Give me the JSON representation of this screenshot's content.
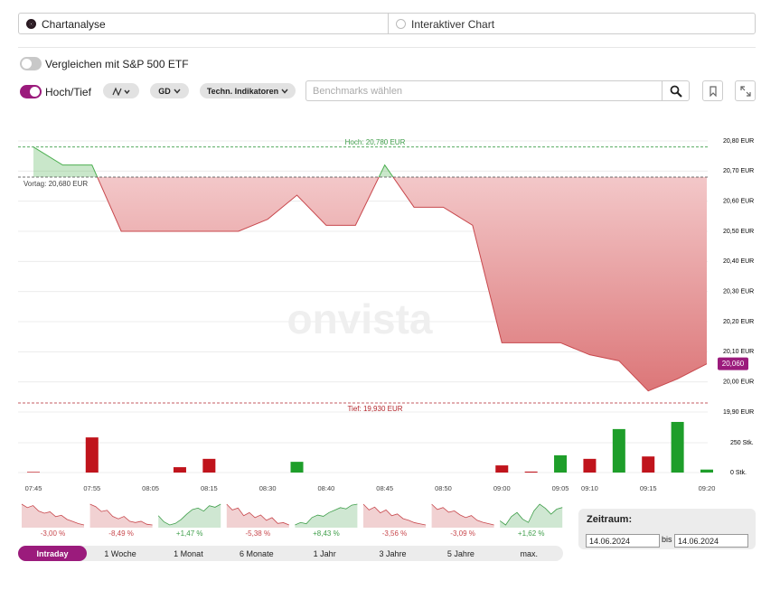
{
  "tabs": [
    {
      "label": "Chartanalyse",
      "selected": true
    },
    {
      "label": "Interaktiver Chart",
      "selected": false
    }
  ],
  "toggles": [
    {
      "label": "Vergleichen mit S&P 500 ETF",
      "on": false
    },
    {
      "label": "Hoch/Tief",
      "on": true
    }
  ],
  "toolbar": {
    "gd": "GD",
    "indicators": "Techn. Indikatoren",
    "benchmark_placeholder": "Benchmarks wählen"
  },
  "watermark": "onvista",
  "chart_data": [
    {
      "type": "area",
      "categories": [
        "07:45",
        null,
        "07:55",
        null,
        "08:05",
        null,
        "08:15",
        null,
        "08:30",
        null,
        "08:40",
        null,
        "08:45",
        null,
        "08:50",
        null,
        "09:00",
        null,
        "09:05",
        "09:10",
        null,
        "09:15",
        null,
        "09:20"
      ],
      "values": [
        20.78,
        20.72,
        20.72,
        20.5,
        20.5,
        20.5,
        20.5,
        20.5,
        20.54,
        20.62,
        20.52,
        20.52,
        20.72,
        20.58,
        20.58,
        20.52,
        20.13,
        20.13,
        20.13,
        20.09,
        20.07,
        19.97,
        20.01,
        20.06
      ],
      "ylim": [
        19.9,
        20.8
      ],
      "yticks": [
        {
          "value": 19.9,
          "label": "19,90 EUR"
        },
        {
          "value": 20.0,
          "label": "20,00 EUR"
        },
        {
          "value": 20.1,
          "label": "20,10 EUR"
        },
        {
          "value": 20.2,
          "label": "20,20 EUR"
        },
        {
          "value": 20.3,
          "label": "20,30 EUR"
        },
        {
          "value": 20.4,
          "label": "20,40 EUR"
        },
        {
          "value": 20.5,
          "label": "20,50 EUR"
        },
        {
          "value": 20.6,
          "label": "20,60 EUR"
        },
        {
          "value": 20.7,
          "label": "20,70 EUR"
        },
        {
          "value": 20.8,
          "label": "20,80 EUR"
        }
      ],
      "grid": true,
      "up_color": "#4caf50",
      "down_color": "#c8484d",
      "reference_lines": [
        {
          "kind": "high",
          "value": 20.78,
          "label": "Hoch: 20,780 EUR",
          "color": "#3f9e4a"
        },
        {
          "kind": "previous_close",
          "value": 20.68,
          "label": "Vortag: 20,680 EUR",
          "color": "#444444"
        },
        {
          "kind": "low",
          "value": 19.93,
          "label": "Tief: 19,930 EUR",
          "color": "#b3262c"
        }
      ],
      "last_value_label": {
        "value": 20.06,
        "label": "20,060",
        "color": "#9b1b7c"
      }
    },
    {
      "type": "bar",
      "values": [
        5,
        null,
        295,
        null,
        null,
        45,
        115,
        null,
        null,
        90,
        null,
        null,
        null,
        null,
        null,
        null,
        60,
        8,
        145,
        115,
        365,
        135,
        425,
        25
      ],
      "colors": [
        "#c0141c",
        null,
        "#c0141c",
        null,
        null,
        "#c0141c",
        "#c0141c",
        null,
        null,
        "#1e9e2a",
        null,
        null,
        null,
        null,
        null,
        null,
        "#c0141c",
        "#c0141c",
        "#1e9e2a",
        "#c0141c",
        "#1e9e2a",
        "#c0141c",
        "#1e9e2a",
        "#1e9e2a"
      ],
      "ylim": [
        0,
        440
      ],
      "yticks": [
        {
          "value": 0,
          "label": "0 Stk."
        },
        {
          "value": 250,
          "label": "250 Stk."
        }
      ]
    },
    {
      "type": "sparkline",
      "label": "-3,00 %",
      "color": "#c8484d",
      "values": [
        100,
        99.5,
        99.8,
        99,
        98.7,
        98.9,
        98.2,
        98.4,
        97.8,
        97.5,
        97.2,
        97
      ]
    },
    {
      "type": "sparkline",
      "label": "-8,49 %",
      "color": "#c8484d",
      "values": [
        100,
        99,
        97,
        97.5,
        95,
        94,
        95,
        93,
        92.5,
        93,
        91.8,
        91.5
      ]
    },
    {
      "type": "sparkline",
      "label": "+1,47 %",
      "color": "#3f9e4a",
      "values": [
        100,
        99.2,
        98.8,
        99,
        99.5,
        100.2,
        100.8,
        101,
        100.6,
        101.3,
        101.1,
        101.5
      ]
    },
    {
      "type": "sparkline",
      "label": "-5,38 %",
      "color": "#c8484d",
      "values": [
        100,
        98.5,
        99,
        97,
        97.8,
        96.5,
        97.2,
        95.8,
        96.5,
        95,
        95.2,
        94.6
      ]
    },
    {
      "type": "sparkline",
      "label": "+8,43 %",
      "color": "#3f9e4a",
      "values": [
        100,
        101,
        100.5,
        103,
        104,
        103.5,
        105,
        106,
        107,
        106.5,
        108,
        108.4
      ]
    },
    {
      "type": "sparkline",
      "label": "-3,56 %",
      "color": "#c8484d",
      "values": [
        100,
        99,
        99.5,
        98.5,
        99,
        98,
        98.3,
        97.5,
        97.2,
        96.8,
        96.6,
        96.4
      ]
    },
    {
      "type": "sparkline",
      "label": "-3,09 %",
      "color": "#c8484d",
      "values": [
        100,
        99.2,
        99.5,
        98.8,
        99,
        98.4,
        98,
        98.3,
        97.6,
        97.3,
        97.1,
        96.9
      ]
    },
    {
      "type": "sparkline",
      "label": "+1,62 %",
      "color": "#3f9e4a",
      "values": [
        100,
        99.5,
        100.5,
        101,
        100.2,
        99.8,
        101.2,
        102,
        101.5,
        100.8,
        101.4,
        101.6
      ]
    }
  ],
  "periods": {
    "items": [
      "Intraday",
      "1 Woche",
      "1 Monat",
      "6 Monate",
      "1 Jahr",
      "3 Jahre",
      "5 Jahre",
      "max."
    ],
    "active": 0
  },
  "date_range": {
    "title": "Zeitraum:",
    "from": "14.06.2024",
    "separator": "bis",
    "to": "14.06.2024"
  }
}
